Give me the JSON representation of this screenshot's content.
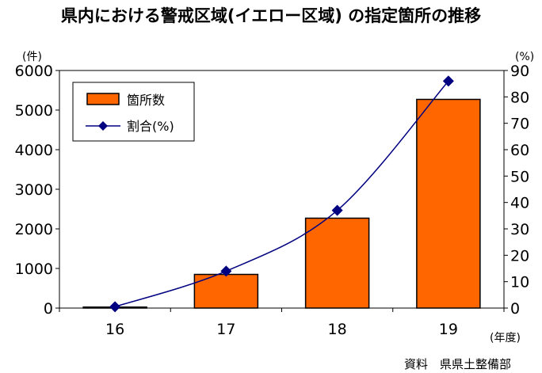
{
  "title": "県内における警戒区域(イエロー区域) の指定箇所の推移",
  "source": "資料　県県土整備部",
  "chart_data": {
    "type": "bar",
    "categories": [
      "16",
      "17",
      "18",
      "19"
    ],
    "series": [
      {
        "name": "箇所数",
        "type": "bar",
        "axis": "left",
        "values": [
          25,
          850,
          2270,
          5270
        ],
        "color": "#ff6600"
      },
      {
        "name": "割合(%)",
        "type": "line",
        "axis": "right",
        "values": [
          0.5,
          14,
          37,
          86
        ],
        "color": "#000080"
      }
    ],
    "y_left": {
      "unit": "(件)",
      "min": 0,
      "max": 6000,
      "step": 1000
    },
    "y_right": {
      "unit": "(%)",
      "min": 0,
      "max": 90,
      "step": 10
    },
    "x_unit": "(年度)",
    "legend": "top-left"
  }
}
